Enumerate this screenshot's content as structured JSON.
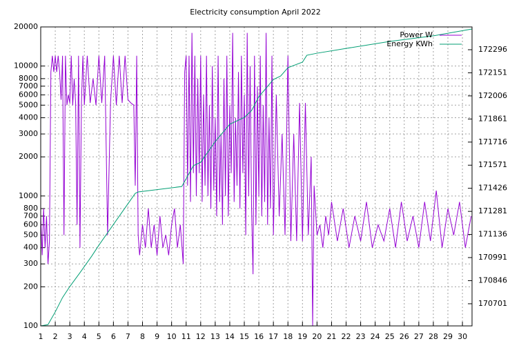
{
  "chart_data": {
    "type": "line",
    "title": "Electricity consumption April 2022",
    "ylog": true,
    "grid": true,
    "legend": "top-right",
    "xlim": [
      1,
      30.66
    ],
    "xticks": [
      1,
      2,
      3,
      4,
      5,
      6,
      7,
      8,
      9,
      10,
      11,
      12,
      13,
      14,
      15,
      16,
      17,
      18,
      19,
      20,
      21,
      22,
      23,
      24,
      25,
      26,
      27,
      28,
      29,
      30
    ],
    "ylim": [
      100,
      20000
    ],
    "yticks": [
      100,
      200,
      300,
      400,
      500,
      600,
      700,
      800,
      1000,
      2000,
      3000,
      4000,
      5000,
      6000,
      7000,
      8000,
      10000,
      20000
    ],
    "y2lim": [
      170562,
      172439
    ],
    "y2ticks": [
      170701,
      170846,
      170991,
      171136,
      171281,
      171426,
      171571,
      171716,
      171861,
      172006,
      172151,
      172296
    ],
    "series": [
      {
        "name": "Power W",
        "color": "#9400d3",
        "x": [
          1.0,
          1.1,
          1.2,
          1.3,
          1.4,
          1.5,
          1.6,
          1.7,
          1.8,
          1.9,
          2.0,
          2.1,
          2.2,
          2.3,
          2.4,
          2.5,
          2.6,
          2.7,
          2.8,
          2.9,
          3.0,
          3.1,
          3.2,
          3.3,
          3.4,
          3.5,
          3.6,
          3.7,
          3.8,
          3.9,
          4.0,
          4.2,
          4.4,
          4.6,
          4.8,
          5.0,
          5.2,
          5.4,
          5.6,
          5.8,
          6.0,
          6.2,
          6.4,
          6.6,
          6.8,
          7.0,
          7.2,
          7.4,
          7.5,
          7.6,
          7.7,
          7.8,
          8.0,
          8.2,
          8.4,
          8.6,
          8.8,
          9.0,
          9.2,
          9.4,
          9.6,
          9.8,
          10.0,
          10.2,
          10.4,
          10.6,
          10.8,
          10.9,
          11.0,
          11.1,
          11.2,
          11.3,
          11.4,
          11.5,
          11.6,
          11.7,
          11.8,
          11.9,
          12.0,
          12.1,
          12.2,
          12.3,
          12.4,
          12.5,
          12.6,
          12.7,
          12.8,
          12.9,
          13.0,
          13.1,
          13.2,
          13.3,
          13.4,
          13.5,
          13.6,
          13.7,
          13.8,
          13.9,
          14.0,
          14.1,
          14.2,
          14.3,
          14.4,
          14.5,
          14.6,
          14.7,
          14.8,
          14.9,
          15.0,
          15.1,
          15.2,
          15.3,
          15.4,
          15.5,
          15.6,
          15.7,
          15.8,
          15.9,
          16.0,
          16.1,
          16.2,
          16.3,
          16.4,
          16.5,
          16.6,
          16.7,
          16.8,
          16.9,
          17.0,
          17.2,
          17.4,
          17.6,
          17.8,
          18.0,
          18.2,
          18.4,
          18.6,
          18.8,
          19.0,
          19.2,
          19.4,
          19.6,
          19.7,
          19.8,
          20.0,
          20.2,
          20.4,
          20.6,
          20.8,
          21.0,
          21.4,
          21.8,
          22.2,
          22.6,
          23.0,
          23.4,
          23.8,
          24.2,
          24.6,
          25.0,
          25.4,
          25.8,
          26.2,
          26.6,
          27.0,
          27.4,
          27.8,
          28.2,
          28.6,
          29.0,
          29.4,
          29.8,
          30.2,
          30.6
        ],
        "values": [
          700,
          350,
          800,
          400,
          700,
          300,
          450,
          9000,
          12000,
          9000,
          12000,
          9000,
          12000,
          9000,
          5500,
          12000,
          500,
          12000,
          5000,
          6000,
          5200,
          12000,
          5000,
          8000,
          5200,
          600,
          12000,
          400,
          5200,
          12000,
          5000,
          12000,
          5200,
          8000,
          5000,
          12000,
          5200,
          12000,
          500,
          5200,
          12000,
          5000,
          12000,
          5200,
          12000,
          5500,
          5200,
          5000,
          1200,
          12000,
          500,
          350,
          600,
          400,
          800,
          400,
          600,
          350,
          700,
          400,
          500,
          350,
          600,
          800,
          400,
          600,
          300,
          9000,
          12000,
          1200,
          12000,
          900,
          18000,
          1500,
          12000,
          1000,
          8000,
          1500,
          12000,
          900,
          6000,
          1200,
          12000,
          1000,
          5000,
          800,
          10000,
          1100,
          4000,
          700,
          12000,
          900,
          3000,
          600,
          8000,
          1000,
          12000,
          700,
          5000,
          1500,
          18000,
          900,
          4000,
          1200,
          9000,
          800,
          12000,
          1500,
          6000,
          500,
          18000,
          1000,
          10000,
          800,
          250,
          12000,
          600,
          7000,
          1000,
          12000,
          700,
          5000,
          900,
          18000,
          600,
          4000,
          800,
          12000,
          500,
          6000,
          700,
          3000,
          500,
          12000,
          450,
          3000,
          450,
          5200,
          450,
          5200,
          500,
          2000,
          100,
          1200,
          500,
          600,
          400,
          700,
          500,
          900,
          450,
          800,
          400,
          700,
          450,
          900,
          400,
          600,
          450,
          800,
          400,
          900,
          450,
          700,
          400,
          900,
          450,
          1100,
          400,
          800,
          500,
          900,
          400,
          700
        ]
      },
      {
        "name": "Energy KWh",
        "color": "#009e73",
        "axis": "y2",
        "x": [
          1.0,
          1.5,
          2.0,
          2.5,
          3.0,
          3.7,
          4.5,
          5.0,
          5.5,
          6.5,
          7.0,
          7.5,
          7.7,
          10.7,
          11.5,
          12.0,
          12.5,
          13.0,
          14.0,
          15.0,
          15.5,
          16.0,
          17.0,
          17.5,
          18.0,
          19.0,
          19.3,
          20.0,
          22.0,
          25.0,
          28.0,
          30.66
        ],
        "values": [
          170562,
          170570,
          170650,
          170740,
          170809,
          170896,
          170999,
          171069,
          171134,
          171264,
          171329,
          171394,
          171403,
          171437,
          171568,
          171589,
          171654,
          171719,
          171828,
          171871,
          171914,
          172001,
          172109,
          172131,
          172183,
          172218,
          172261,
          172274,
          172304,
          172348,
          172383,
          172426
        ]
      }
    ]
  }
}
